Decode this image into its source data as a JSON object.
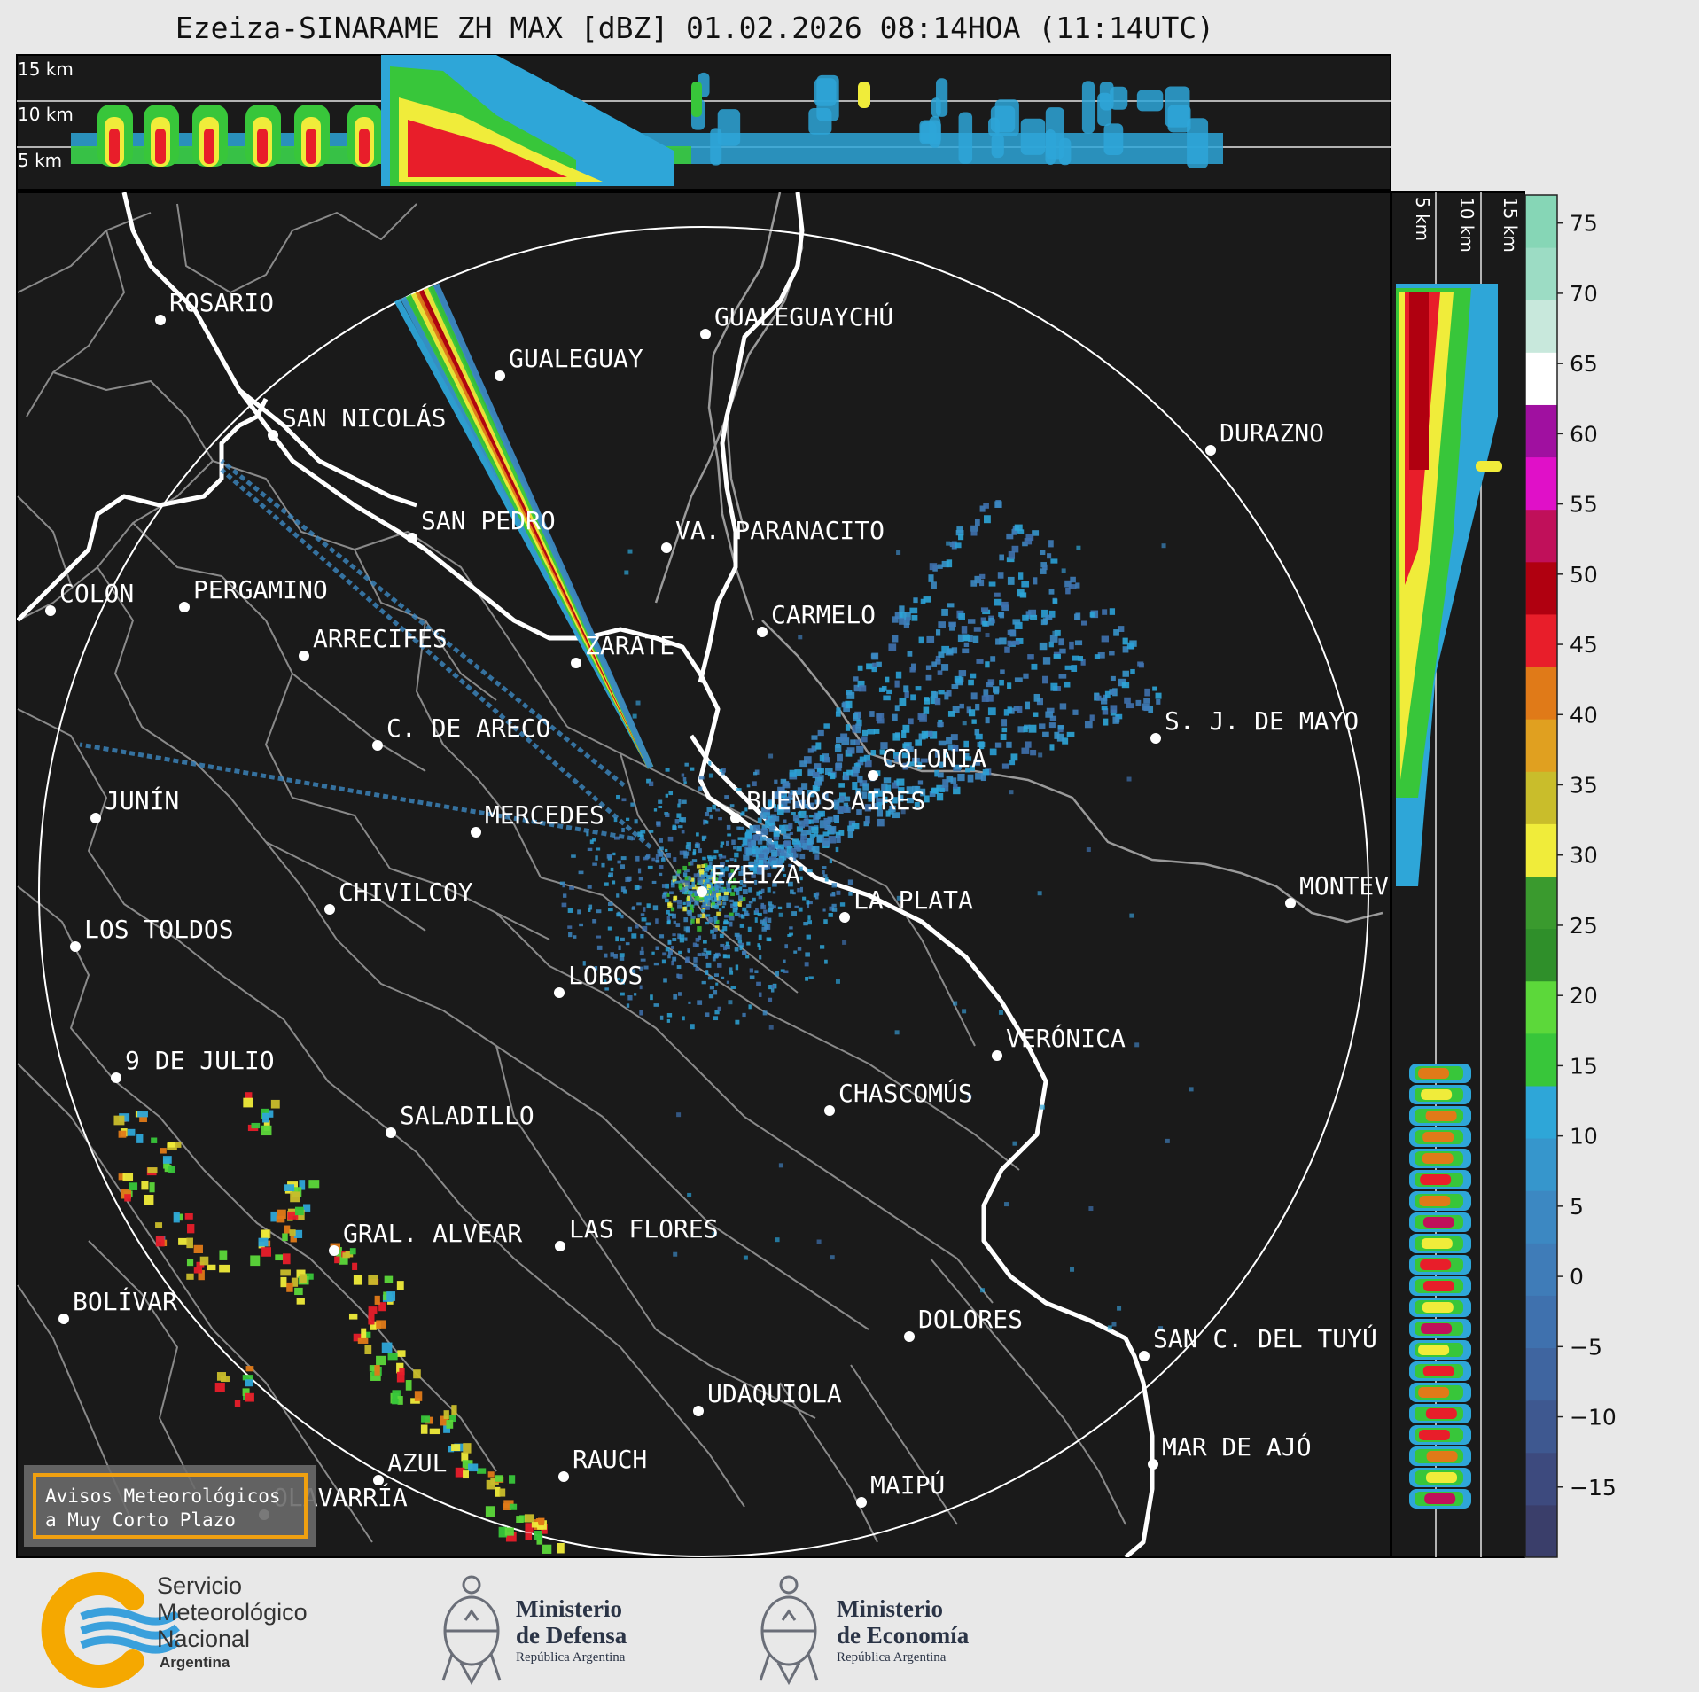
{
  "title": "Ezeiza-SINARAME ZH MAX [dBZ] 01.02.2026 08:14HOA (11:14UTC)",
  "top_panel": {
    "height_labels": [
      "15 km",
      "10 km",
      "5 km"
    ]
  },
  "side_panel": {
    "height_labels": [
      "5 km",
      "10 km",
      "15 km"
    ]
  },
  "colorbar": {
    "unit": "dBZ",
    "ticks": [
      "75",
      "70",
      "65",
      "60",
      "55",
      "50",
      "45",
      "40",
      "35",
      "30",
      "25",
      "20",
      "15",
      "10",
      "5",
      "0",
      "−5",
      "−10",
      "−15"
    ],
    "tick_values": [
      75,
      70,
      65,
      60,
      55,
      50,
      45,
      40,
      35,
      30,
      25,
      20,
      15,
      10,
      5,
      0,
      -5,
      -10,
      -15
    ],
    "range": [
      -20,
      77
    ],
    "colors": [
      "#3a3e6a",
      "#3d4a7e",
      "#3e5890",
      "#3f65a0",
      "#3f71ae",
      "#3f7cb8",
      "#3c88c2",
      "#3696cc",
      "#2ea6d8",
      "#38c63a",
      "#5cd83a",
      "#2f8f2a",
      "#3a9a2e",
      "#f0ec3a",
      "#c9bd2b",
      "#e0a020",
      "#e07a18",
      "#e81e2a",
      "#b00010",
      "#c0105a",
      "#e010c8",
      "#a010a0",
      "#ffffff",
      "#c8e8dc",
      "#9cdcc4",
      "#86d6b6"
    ]
  },
  "map": {
    "radar_name": "EZEIZA",
    "cities": [
      {
        "name": "ROSARIO"
      },
      {
        "name": "GUALEGUAYCHÚ"
      },
      {
        "name": "GUALEGUAY"
      },
      {
        "name": "SAN NICOLÁS"
      },
      {
        "name": "DURAZNO"
      },
      {
        "name": "SAN PEDRO"
      },
      {
        "name": "VA. PARANACITO"
      },
      {
        "name": "COLON"
      },
      {
        "name": "PERGAMINO"
      },
      {
        "name": "CARMELO"
      },
      {
        "name": "ARRECIFES"
      },
      {
        "name": "ZÁRATE"
      },
      {
        "name": "S. J. DE MAYO"
      },
      {
        "name": "C. DE ARECO"
      },
      {
        "name": "COLONIA"
      },
      {
        "name": "JUNÍN"
      },
      {
        "name": "BUENOS AIRES"
      },
      {
        "name": "MERCEDES"
      },
      {
        "name": "EZEIZA"
      },
      {
        "name": "MONTEV"
      },
      {
        "name": "CHIVILCOY"
      },
      {
        "name": "LA PLATA"
      },
      {
        "name": "LOS TOLDOS"
      },
      {
        "name": "LOBOS"
      },
      {
        "name": "VERÓNICA"
      },
      {
        "name": "9 DE JULIO"
      },
      {
        "name": "CHASCOMÚS"
      },
      {
        "name": "SALADILLO"
      },
      {
        "name": "GRAL. ALVEAR"
      },
      {
        "name": "LAS FLORES"
      },
      {
        "name": "BOLÍVAR"
      },
      {
        "name": "DOLORES"
      },
      {
        "name": "SAN C. DEL TUYÚ"
      },
      {
        "name": "UDAQUIOLA"
      },
      {
        "name": "MAR DE AJÓ"
      },
      {
        "name": "AZUL"
      },
      {
        "name": "RAUCH"
      },
      {
        "name": "MAIPÚ"
      },
      {
        "name": "OLAVARRÍA"
      }
    ]
  },
  "warning_box": {
    "line1": "Avisos Meteorológicos",
    "line2": "a Muy Corto Plazo",
    "border_color": "#f0a010"
  },
  "logos": {
    "smn": {
      "line1": "Servicio",
      "line2": "Meteorológico",
      "line3": "Nacional",
      "line4": "Argentina",
      "colors": [
        "#f5a800",
        "#3aa0dc"
      ]
    },
    "defensa": {
      "line1": "Ministerio",
      "line2": "de Defensa",
      "line3": "República Argentina"
    },
    "economia": {
      "line1": "Ministerio",
      "line2": "de Economía",
      "line3": "República Argentina"
    }
  }
}
